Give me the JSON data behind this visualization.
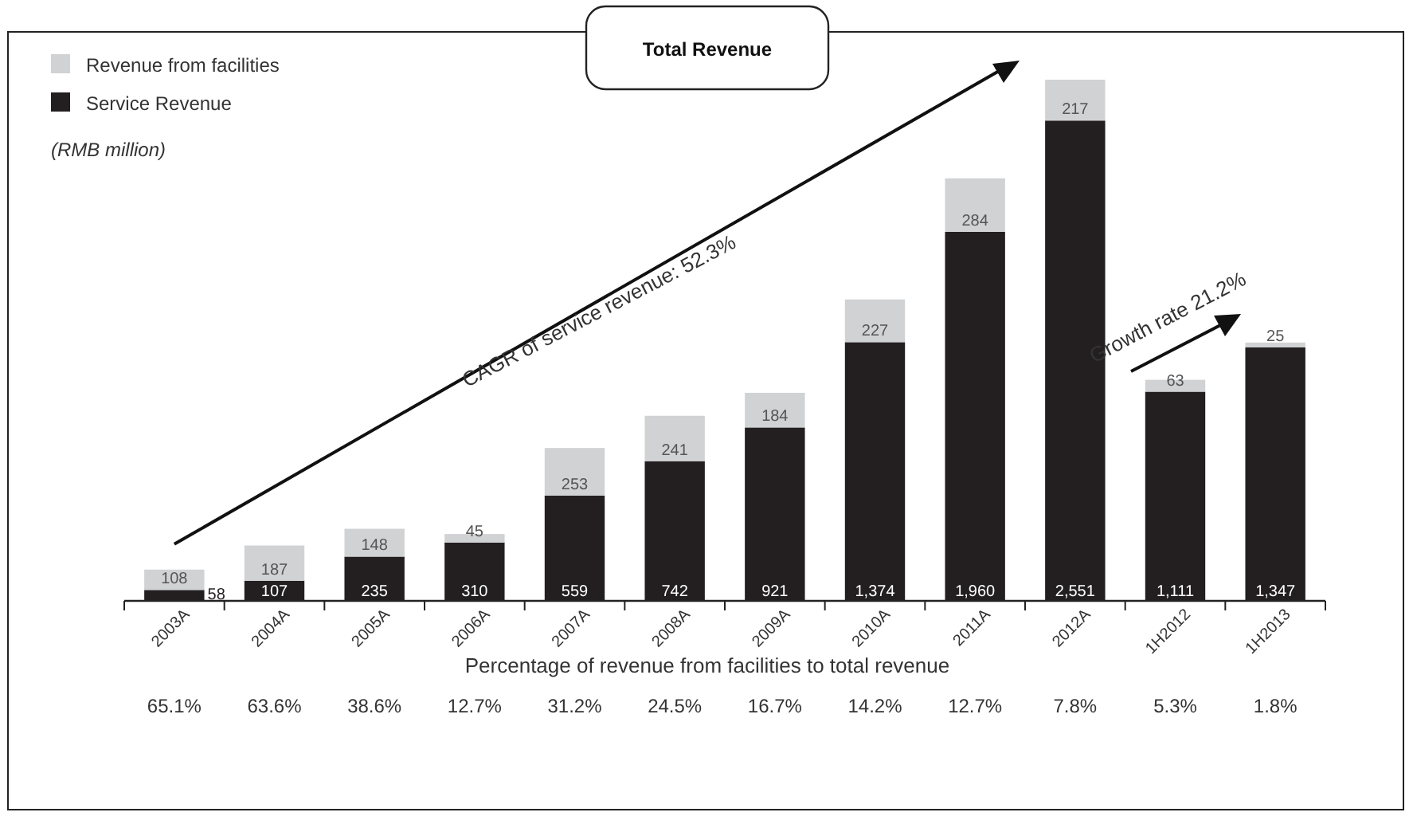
{
  "chart_data": {
    "type": "bar",
    "title": "Total Revenue",
    "subtitle": "(RMB million)",
    "stacked": true,
    "legend": "top left",
    "categories": [
      "2003A",
      "2004A",
      "2005A",
      "2006A",
      "2007A",
      "2008A",
      "2009A",
      "2010A",
      "2011A",
      "2012A",
      "1H2012",
      "1H2013"
    ],
    "series": [
      {
        "name": "Service Revenue",
        "color": "#231f20",
        "values": [
          58,
          107,
          235,
          310,
          559,
          742,
          921,
          1374,
          1960,
          2551,
          1111,
          1347
        ],
        "value_labels": [
          "58",
          "107",
          "235",
          "310",
          "559",
          "742",
          "921",
          "1,374",
          "1,960",
          "2,551",
          "1,111",
          "1,347"
        ]
      },
      {
        "name": "Revenue from facilities",
        "color": "#d1d2d4",
        "values": [
          108,
          187,
          148,
          45,
          253,
          241,
          184,
          227,
          284,
          217,
          63,
          25
        ],
        "value_labels": [
          "108",
          "187",
          "148",
          "45",
          "253",
          "241",
          "184",
          "227",
          "284",
          "217",
          "63",
          "25"
        ]
      }
    ],
    "annotations": [
      {
        "text": "CAGR of service revenue: 52.3%"
      },
      {
        "text": "Growth rate 21.2%"
      },
      {
        "text": "Percentage of revenue from facilities to total revenue"
      },
      "65.1%",
      "63.6%",
      "38.6%",
      "12.7%",
      "31.2%",
      "24.5%",
      "16.7%",
      "14.2%",
      "12.7%",
      "7.8%",
      "5.3%",
      "1.8%"
    ]
  }
}
